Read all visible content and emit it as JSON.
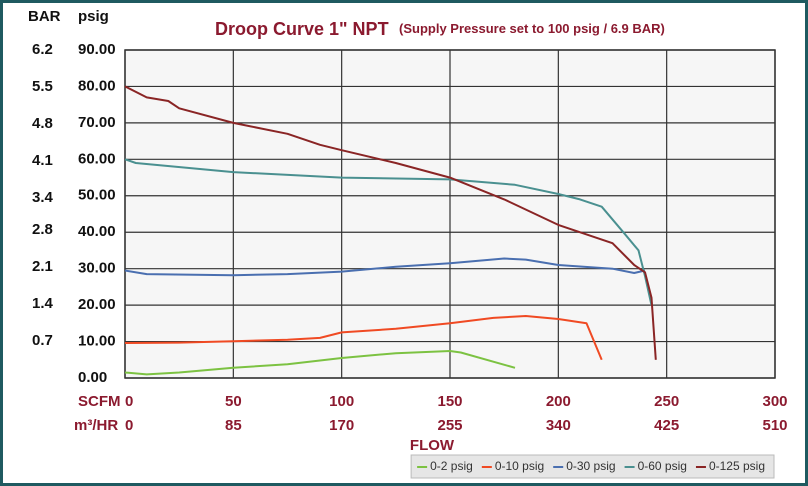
{
  "chart_data": {
    "type": "line",
    "title": "Droop Curve 1\" NPT",
    "subtitle": "(Supply Pressure set to 100 psig / 6.9 BAR)",
    "y_label": "psig",
    "y2_label": "BAR",
    "x_label": "SCFM",
    "x2_label": "m³/HR",
    "x_title": "FLOW",
    "xlim": [
      0,
      300
    ],
    "xticks": [
      0,
      50,
      100,
      150,
      200,
      250,
      300
    ],
    "x2lim": [
      0,
      510
    ],
    "x2ticks": [
      0,
      85,
      170,
      255,
      340,
      425,
      510
    ],
    "ylim": [
      0,
      90
    ],
    "yticks": [
      {
        "value": 0,
        "label": "0.00"
      },
      {
        "value": 10,
        "label": "10.00"
      },
      {
        "value": 20,
        "label": "20.00"
      },
      {
        "value": 30,
        "label": "30.00"
      },
      {
        "value": 40,
        "label": "40.00"
      },
      {
        "value": 50,
        "label": "50.00"
      },
      {
        "value": 60,
        "label": "60.00"
      },
      {
        "value": 70,
        "label": "70.00"
      },
      {
        "value": 80,
        "label": "80.00"
      },
      {
        "value": 90,
        "label": "90.00"
      }
    ],
    "y2lim": [
      0,
      6.2
    ],
    "y2ticks": [
      0.7,
      1.4,
      2.1,
      2.8,
      3.4,
      4.1,
      4.8,
      5.5,
      6.2
    ],
    "grid": true,
    "legend": "bottom-right",
    "series": [
      {
        "name": "0-2 psig",
        "color": "#7cc242",
        "x": [
          0,
          10,
          25,
          50,
          75,
          100,
          125,
          150,
          155,
          180
        ],
        "values": [
          1.5,
          1.0,
          1.5,
          2.8,
          3.8,
          5.5,
          6.8,
          7.4,
          7.0,
          2.8
        ]
      },
      {
        "name": "0-10 psig",
        "color": "#f04a23",
        "x": [
          0,
          25,
          50,
          75,
          90,
          100,
          125,
          150,
          170,
          185,
          200,
          213,
          220
        ],
        "values": [
          9.6,
          9.7,
          10.1,
          10.5,
          11,
          12.5,
          13.5,
          15,
          16.5,
          17,
          16.2,
          15,
          5
        ]
      },
      {
        "name": "0-30 psig",
        "color": "#4a6fb0",
        "x": [
          0,
          10,
          50,
          75,
          100,
          125,
          150,
          175,
          185,
          200,
          225,
          235,
          240
        ],
        "values": [
          29.5,
          28.5,
          28.2,
          28.5,
          29.2,
          30.5,
          31.5,
          32.8,
          32.5,
          31,
          30,
          28.8,
          29.5
        ]
      },
      {
        "name": "0-60 psig",
        "color": "#4a9090",
        "x": [
          0,
          5,
          50,
          100,
          150,
          180,
          200,
          210,
          220,
          230,
          237,
          240,
          243
        ],
        "values": [
          60,
          59,
          56.5,
          55,
          54.5,
          53,
          50.5,
          49,
          47,
          40,
          35,
          28,
          20
        ]
      },
      {
        "name": "0-125 psig",
        "color": "#8a2525",
        "x": [
          0,
          10,
          20,
          25,
          50,
          75,
          90,
          100,
          125,
          150,
          175,
          200,
          225,
          235,
          240,
          243,
          245
        ],
        "values": [
          80,
          77,
          76,
          74,
          70,
          67,
          64,
          62.5,
          59,
          55,
          49,
          42,
          37,
          31,
          29,
          22,
          5
        ]
      }
    ]
  }
}
